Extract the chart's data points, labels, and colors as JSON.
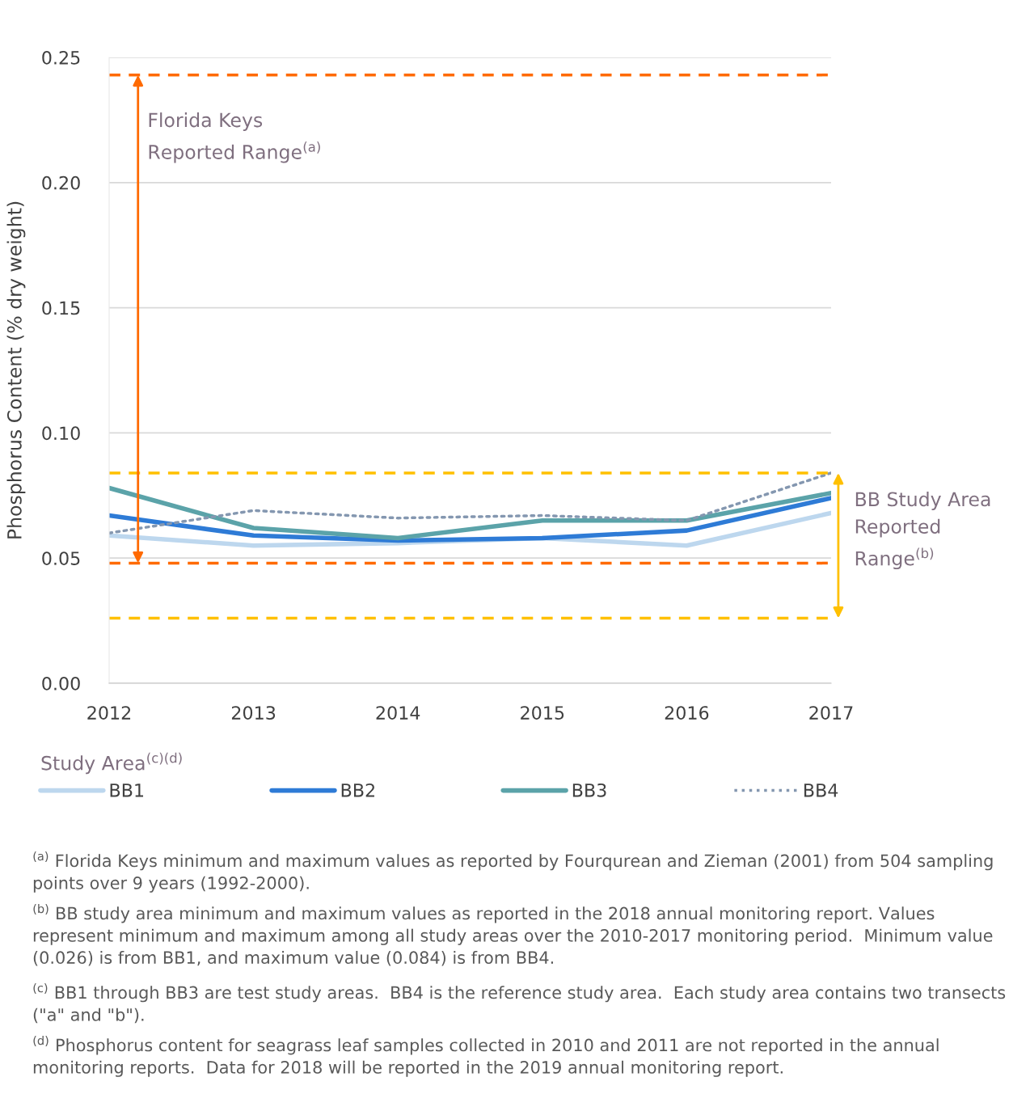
{
  "chart_data": {
    "type": "line",
    "ylabel": "Phosphorus Content (% dry weight)",
    "legend_title": "Study Area$^{(c)(d)}$",
    "x": [
      2012,
      2013,
      2014,
      2015,
      2016,
      2017
    ],
    "series": [
      {
        "name": "BB1",
        "color": "#bdd7ee",
        "values": [
          0.059,
          0.055,
          0.056,
          0.058,
          0.055,
          0.068
        ]
      },
      {
        "name": "BB2",
        "color": "#2e7bd6",
        "values": [
          0.067,
          0.059,
          0.057,
          0.058,
          0.061,
          0.074
        ]
      },
      {
        "name": "BB3",
        "color": "#5ba3a9",
        "values": [
          0.078,
          0.062,
          0.058,
          0.065,
          0.065,
          0.076
        ]
      },
      {
        "name": "BB4",
        "color": "#8497b0",
        "values": [
          0.06,
          0.069,
          0.066,
          0.067,
          0.065,
          0.084
        ],
        "line_style": "dotted"
      }
    ],
    "xlim": [
      2012,
      2017
    ],
    "xticks": [
      2012,
      2013,
      2014,
      2015,
      2016,
      2017
    ],
    "ylim": [
      0,
      0.25
    ],
    "yticks": [
      {
        "value": 0,
        "label": "0.00"
      },
      {
        "value": 0.05,
        "label": "0.05"
      },
      {
        "value": 0.1,
        "label": "0.10"
      },
      {
        "value": 0.15,
        "label": "0.15"
      },
      {
        "value": 0.2,
        "label": "0.20"
      },
      {
        "value": 0.25,
        "label": "0.25"
      }
    ],
    "ref_lines": [
      {
        "axis": "y",
        "value": 0.243,
        "label": "Florida Keys\nReported Range$^{(a)}$",
        "color": "#ff6a00",
        "line_style": "dashed"
      },
      {
        "axis": "y",
        "value": 0.048,
        "color": "#ff6a00",
        "line_style": "dashed"
      },
      {
        "axis": "y",
        "value": 0.084,
        "label": "BB Study Area\nReported\nRange$^{(b)}$",
        "color": "#ffc000",
        "line_style": "dashed"
      },
      {
        "axis": "y",
        "value": 0.026,
        "color": "#ffc000",
        "line_style": "dashed"
      }
    ],
    "grid": "y",
    "legend": "bottom",
    "marker": "none",
    "line_style": "solid",
    "annotations": [
      "$^{(a)}$ Florida Keys minimum and maximum values as reported by Fourqurean and Zieman (2001) from 504 sampling points over 9 years (1992-2000).",
      "$^{(b)}$ BB study area minimum and maximum values as reported in the 2018 annual monitoring report. Values represent minimum and maximum among all study areas over the 2010-2017 monitoring period.  Minimum value (0.026) is from BB1, and maximum value (0.084) is from BB4.",
      "$^{(c)}$ BB1 through BB3 are test study areas.  BB4 is the reference study area.  Each study area contains two transects (\"a\" and \"b\").",
      "$^{(d)}$ Phosphorus content for seagrass leaf samples collected in 2010 and 2011 are not reported in the annual monitoring reports.  Data for 2018 will be reported in the 2019 annual monitoring report."
    ]
  }
}
